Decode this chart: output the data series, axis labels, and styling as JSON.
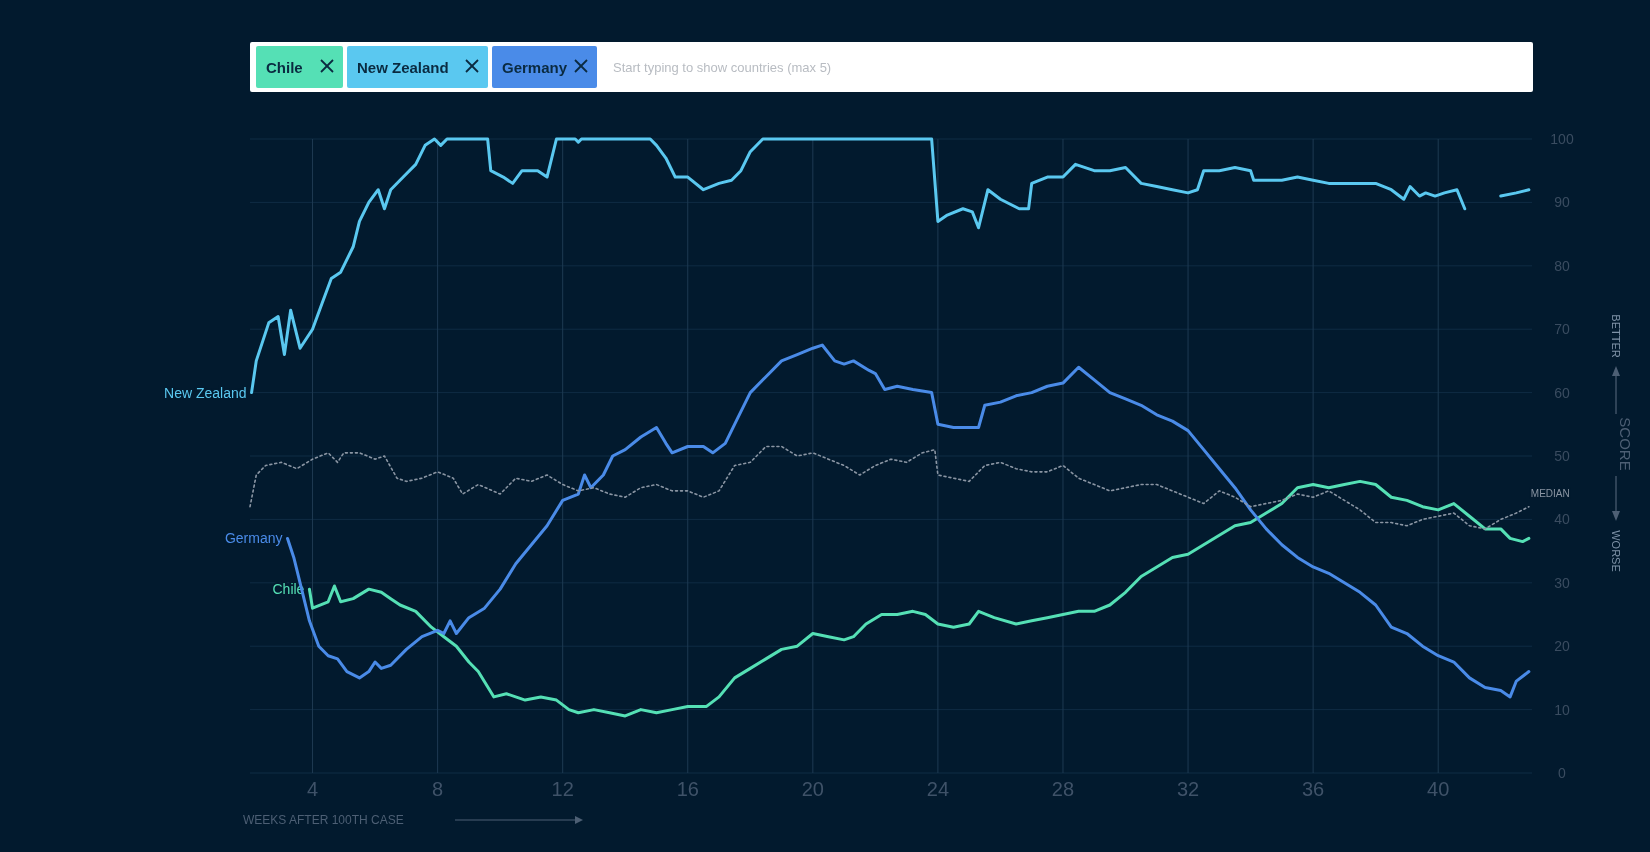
{
  "chart_data": {
    "type": "line",
    "xlabel": "WEEKS AFTER 100TH CASE",
    "ylabel": "SCORE",
    "annotations": [
      "BETTER",
      "WORSE",
      "Start typing to show countries (max 5)"
    ],
    "xlim": [
      2,
      43
    ],
    "xticks": [
      4,
      8,
      12,
      16,
      20,
      24,
      28,
      32,
      36,
      40
    ],
    "ylim": [
      0,
      100
    ],
    "yticks": [
      0,
      10,
      20,
      30,
      40,
      50,
      60,
      70,
      80,
      90,
      100
    ],
    "grid": true,
    "line_style": "solid",
    "series": [
      {
        "name": "Chile",
        "color": "#55e0b5",
        "x": [
          3.9,
          4.0,
          4.5,
          4.7,
          4.9,
          5.3,
          5.8,
          6.2,
          6.5,
          6.8,
          7.3,
          7.8,
          8.2,
          8.6,
          9.0,
          9.3,
          9.8,
          10.2,
          10.8,
          11.3,
          11.8,
          12.2,
          12.5,
          13.0,
          13.5,
          14.0,
          14.5,
          15.0,
          15.5,
          16.0,
          16.6,
          17.0,
          17.5,
          18.0,
          18.5,
          19.0,
          19.5,
          20.0,
          20.5,
          21.0,
          21.3,
          21.7,
          22.2,
          22.7,
          23.2,
          23.6,
          24.0,
          24.5,
          25.0,
          25.3,
          25.8,
          26.5,
          27.0,
          27.5,
          28.0,
          28.5,
          29.0,
          29.5,
          30.0,
          30.5,
          31.0,
          31.5,
          32.0,
          32.5,
          33.0,
          33.5,
          34.0,
          34.5,
          35.0,
          35.5,
          36.0,
          36.5,
          37.0,
          37.5,
          38.0,
          38.5,
          39.0,
          39.5,
          40.0,
          40.5,
          41.0,
          41.5,
          42.0,
          42.3,
          42.7,
          42.9
        ],
        "values": [
          29,
          26,
          27,
          29.5,
          27,
          27.5,
          29,
          28.5,
          27.5,
          26.5,
          25.5,
          23,
          21.5,
          20,
          17.5,
          16,
          12,
          12.5,
          11.5,
          12,
          11.5,
          10,
          9.5,
          10,
          9.5,
          9,
          10,
          9.5,
          10,
          10.5,
          10.5,
          12,
          15,
          16.5,
          18,
          19.5,
          20,
          22,
          21.5,
          21,
          21.5,
          23.5,
          25,
          25,
          25.5,
          25,
          23.5,
          23,
          23.5,
          25.5,
          24.5,
          23.5,
          24,
          24.5,
          25,
          25.5,
          25.5,
          26.5,
          28.5,
          31,
          32.5,
          34,
          34.5,
          36,
          37.5,
          39,
          39.5,
          41,
          42.5,
          45,
          45.5,
          45,
          45.5,
          46,
          45.5,
          43.5,
          43,
          42,
          41.5,
          42.5,
          40.5,
          38.5,
          38.5,
          37,
          36.5,
          37
        ]
      },
      {
        "name": "New Zealand",
        "color": "#5ac8f0",
        "x": [
          2.05,
          2.2,
          2.6,
          2.9,
          3.1,
          3.3,
          3.6,
          4.0,
          4.3,
          4.6,
          4.9,
          5.3,
          5.5,
          5.8,
          6.1,
          6.3,
          6.5,
          6.9,
          7.3,
          7.6,
          7.9,
          8.1,
          8.3,
          9.6,
          9.7,
          10.1,
          10.4,
          10.7,
          11.2,
          11.5,
          11.8,
          12.4,
          12.5,
          12.6,
          14.8,
          15.0,
          15.3,
          15.6,
          16.0,
          16.5,
          17.0,
          17.4,
          17.7,
          18.0,
          18.4,
          23.8,
          24.0,
          24.3,
          24.8,
          25.1,
          25.3,
          25.6,
          26.0,
          26.6,
          26.9,
          27.0,
          27.5,
          28.0,
          28.4,
          29.0,
          29.5,
          30.0,
          30.5,
          31.0,
          31.5,
          32.0,
          32.3,
          32.5,
          33.0,
          33.5,
          34.0,
          34.1,
          34.5,
          35.0,
          35.5,
          36.0,
          36.5,
          37.0,
          38.0,
          38.5,
          38.9,
          39.1,
          39.4,
          39.6,
          39.9,
          40.2,
          40.6,
          40.85,
          41.4,
          42.0,
          42.5,
          42.9
        ],
        "values": [
          60,
          65,
          71,
          72,
          66,
          73,
          67,
          70,
          74,
          78,
          79,
          83,
          87,
          90,
          92,
          89,
          92,
          94,
          96,
          99,
          100,
          99,
          100,
          100,
          95,
          94,
          93,
          95,
          95,
          94,
          100,
          100,
          99.5,
          100,
          100,
          99,
          97,
          94,
          94,
          92,
          93,
          93.5,
          95,
          98,
          100,
          100,
          87,
          88,
          89,
          88.5,
          86,
          92,
          90.5,
          89,
          89,
          93,
          94,
          94,
          96,
          95,
          95,
          95.5,
          93,
          92.5,
          92,
          91.5,
          92,
          95,
          95,
          95.5,
          95,
          93.5,
          93.5,
          93.5,
          94,
          93.5,
          93,
          93,
          93,
          92,
          90.5,
          92.5,
          91,
          91.5,
          91,
          91.5,
          92,
          89,
          null,
          91,
          91.5,
          92
        ]
      },
      {
        "name": "Germany",
        "color": "#4a8be8",
        "x": [
          3.2,
          3.4,
          3.7,
          3.9,
          4.2,
          4.5,
          4.8,
          5.1,
          5.5,
          5.8,
          6.0,
          6.2,
          6.5,
          7.0,
          7.5,
          8.0,
          8.2,
          8.4,
          8.6,
          9.0,
          9.5,
          10.0,
          10.5,
          11.0,
          11.5,
          12.0,
          12.5,
          12.7,
          12.9,
          13.3,
          13.6,
          14.0,
          14.5,
          15.0,
          15.3,
          15.5,
          16.0,
          16.5,
          16.8,
          17.2,
          17.6,
          18.0,
          18.5,
          19.0,
          19.5,
          20.0,
          20.3,
          20.7,
          21.0,
          21.3,
          21.8,
          22.0,
          22.3,
          22.7,
          23.2,
          23.8,
          24.0,
          24.5,
          25.0,
          25.3,
          25.5,
          26.0,
          26.5,
          27.0,
          27.5,
          28.0,
          28.5,
          29.0,
          29.5,
          30.0,
          30.5,
          31.0,
          31.5,
          32.0,
          32.5,
          33.0,
          33.5,
          34.0,
          34.5,
          35.0,
          35.5,
          36.0,
          36.5,
          37.0,
          37.5,
          38.0,
          38.5,
          39.0,
          39.5,
          40.0,
          40.5,
          41.0,
          41.5,
          42.0,
          42.3,
          42.5,
          42.9
        ],
        "values": [
          37,
          34,
          28,
          24,
          20,
          18.5,
          18,
          16,
          15,
          16,
          17.5,
          16.5,
          17,
          19.5,
          21.5,
          22.5,
          22,
          24,
          22,
          24.5,
          26,
          29,
          33,
          36,
          39,
          43,
          44,
          47,
          45,
          47,
          50,
          51,
          53,
          54.5,
          52,
          50.5,
          51.5,
          51.5,
          50.5,
          52,
          56,
          60,
          62.5,
          65,
          66,
          67,
          67.5,
          65,
          64.5,
          65,
          63.5,
          63,
          60.5,
          61,
          60.5,
          60,
          55,
          54.5,
          54.5,
          54.5,
          58,
          58.5,
          59.5,
          60,
          61,
          61.5,
          64,
          62,
          60,
          59,
          58,
          56.5,
          55.5,
          54,
          51,
          48,
          45,
          41.5,
          38.5,
          36,
          34,
          32.5,
          31.5,
          30,
          28.5,
          26.5,
          23,
          22,
          20,
          18.5,
          17.5,
          15,
          13.5,
          13,
          12,
          14.5,
          16
        ]
      },
      {
        "name": "MEDIAN",
        "color": "#8a95a3",
        "line_style": "dotted",
        "x": [
          2.0,
          2.2,
          2.5,
          3.0,
          3.5,
          4.0,
          4.5,
          4.8,
          5.0,
          5.5,
          6.0,
          6.3,
          6.7,
          7.0,
          7.5,
          8.0,
          8.5,
          8.8,
          9.3,
          10.0,
          10.5,
          11.0,
          11.5,
          12.0,
          12.5,
          13.0,
          13.5,
          14.0,
          14.5,
          15.0,
          15.5,
          16.0,
          16.5,
          17.0,
          17.5,
          18.0,
          18.5,
          19.0,
          19.5,
          20.0,
          20.5,
          21.0,
          21.5,
          22.0,
          22.5,
          23.0,
          23.5,
          23.9,
          24.0,
          24.5,
          25.0,
          25.5,
          26.0,
          26.5,
          27.0,
          27.5,
          28.0,
          28.5,
          29.0,
          29.5,
          30.0,
          30.5,
          31.0,
          31.5,
          32.0,
          32.5,
          33.0,
          33.5,
          34.0,
          34.5,
          35.0,
          35.5,
          36.0,
          36.5,
          37.0,
          37.5,
          38.0,
          38.5,
          39.0,
          39.5,
          40.0,
          40.5,
          41.0,
          41.5,
          42.0,
          42.5,
          42.9
        ],
        "values": [
          42,
          47,
          48.5,
          49,
          48,
          49.5,
          50.5,
          49,
          50.5,
          50.5,
          49.5,
          50,
          46.5,
          46,
          46.5,
          47.5,
          46.5,
          44,
          45.5,
          44,
          46.5,
          46,
          47,
          45.5,
          44.5,
          45,
          44,
          43.5,
          45,
          45.5,
          44.5,
          44.5,
          43.5,
          44.5,
          48.5,
          49,
          51.5,
          51.5,
          50,
          50.5,
          49.5,
          48.5,
          47,
          48.5,
          49.5,
          49,
          50.5,
          51,
          47,
          46.5,
          46,
          48.5,
          49,
          48,
          47.5,
          47.5,
          48.5,
          46.5,
          45.5,
          44.5,
          45,
          45.5,
          45.5,
          44.5,
          43.5,
          42.5,
          44.5,
          43.5,
          42,
          42.5,
          43,
          44,
          43.5,
          44.5,
          43,
          41.5,
          39.5,
          39.5,
          39,
          40,
          40.5,
          41,
          39,
          38.5,
          40,
          41,
          42
        ]
      }
    ]
  }
}
